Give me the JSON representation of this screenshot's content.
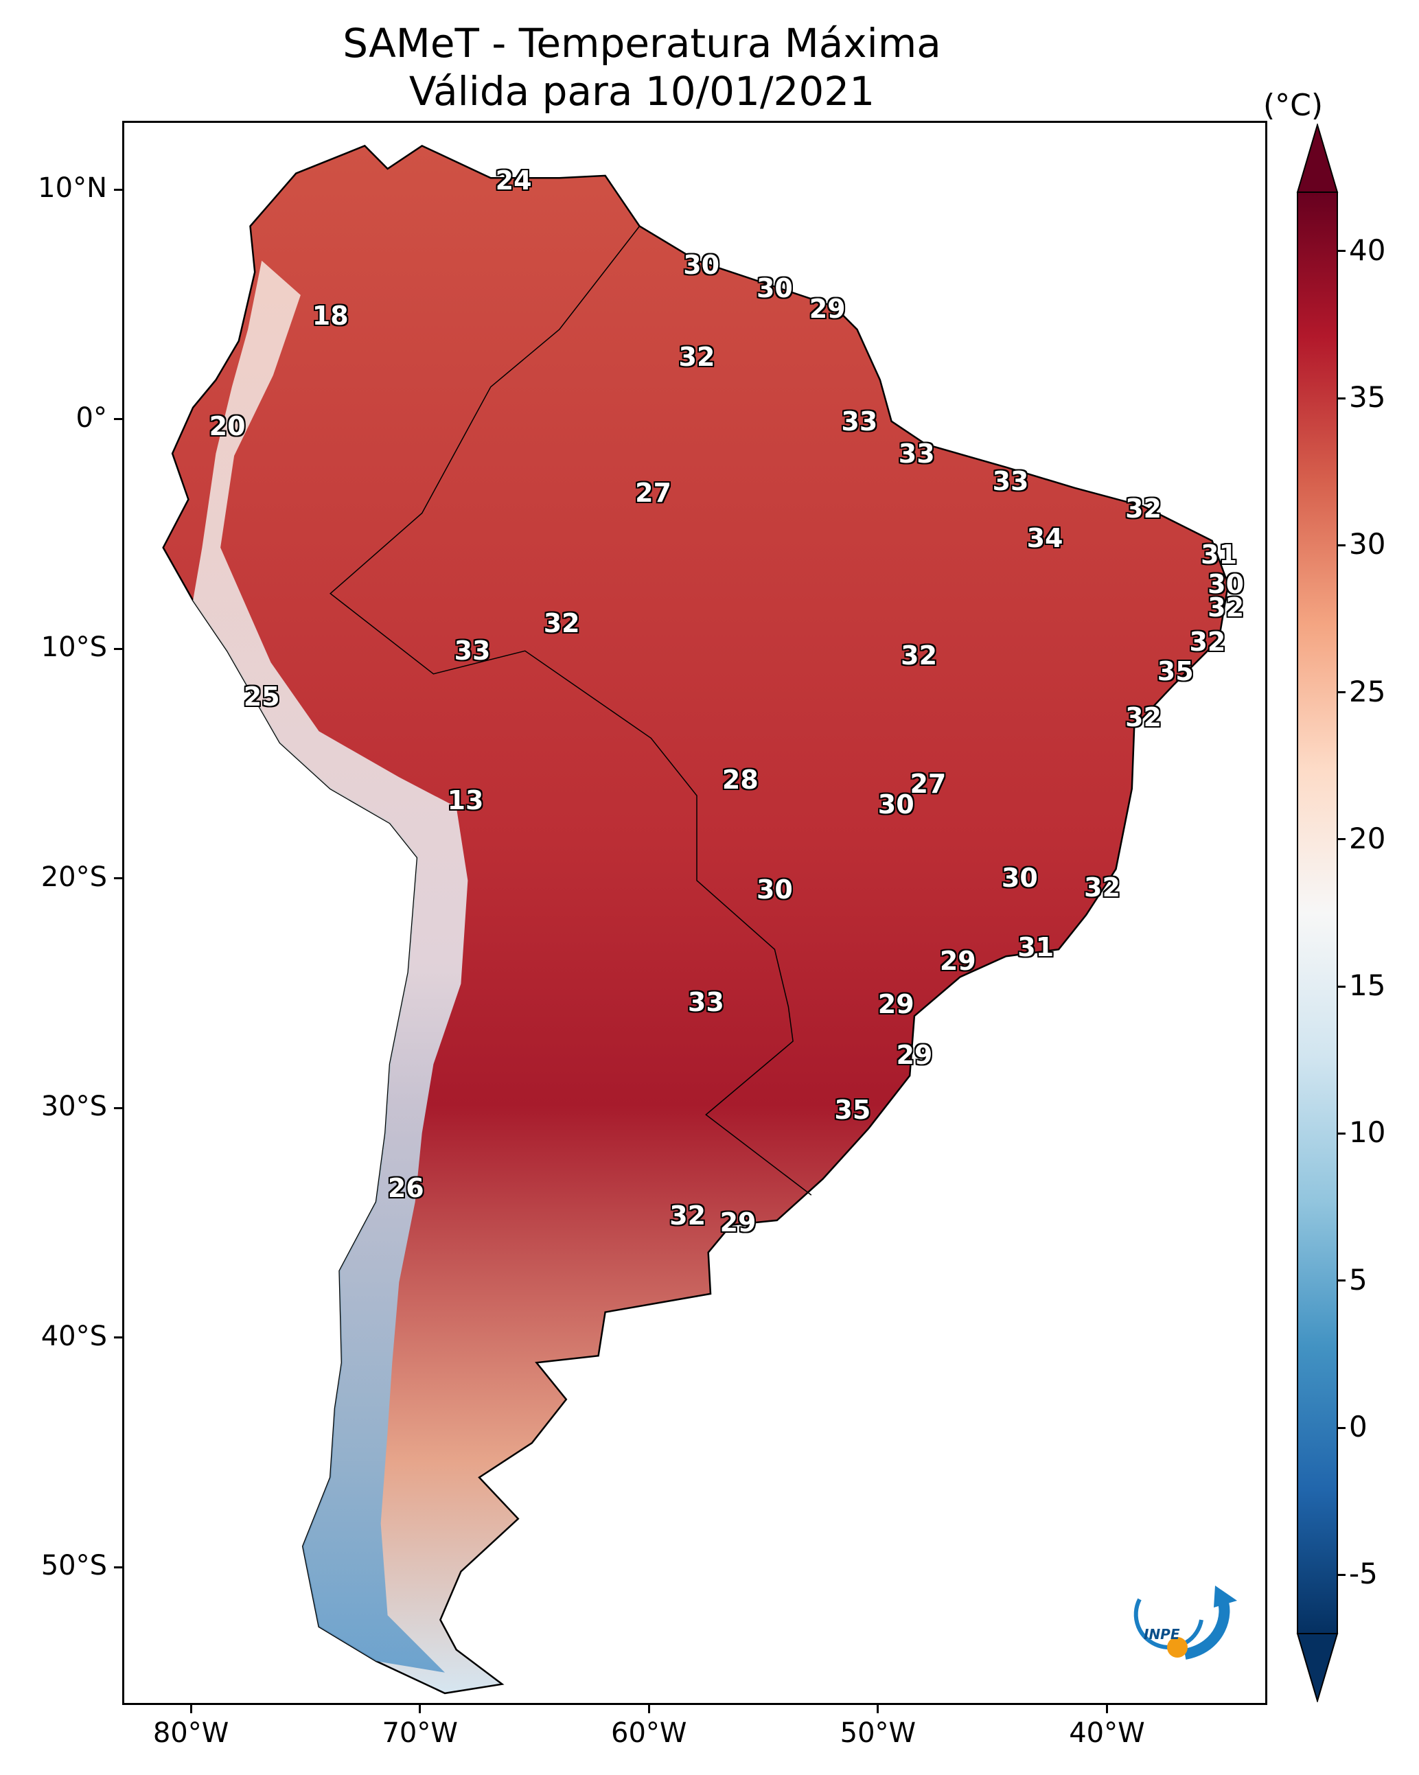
{
  "title": {
    "line1": "SAMeT - Temperatura Máxima",
    "line2": "Válida para 10/01/2021"
  },
  "map": {
    "variable": "Temperatura Máxima",
    "dataset": "SAMeT",
    "date": "10/01/2021",
    "lon_range": [
      -83,
      -33
    ],
    "lat_range": [
      -56,
      13
    ],
    "x_ticks": [
      {
        "lon": -80,
        "label": "80°W"
      },
      {
        "lon": -70,
        "label": "70°W"
      },
      {
        "lon": -60,
        "label": "60°W"
      },
      {
        "lon": -50,
        "label": "50°W"
      },
      {
        "lon": -40,
        "label": "40°W"
      }
    ],
    "y_ticks": [
      {
        "lat": 10,
        "label": "10°N"
      },
      {
        "lat": 0,
        "label": "0°"
      },
      {
        "lat": -10,
        "label": "10°S"
      },
      {
        "lat": -20,
        "label": "20°S"
      },
      {
        "lat": -30,
        "label": "30°S"
      },
      {
        "lat": -40,
        "label": "40°S"
      },
      {
        "lat": -50,
        "label": "50°S"
      }
    ],
    "station_values": [
      {
        "lon": -66.0,
        "lat": 10.5,
        "value": "24"
      },
      {
        "lon": -74.0,
        "lat": 4.6,
        "value": "18"
      },
      {
        "lon": -78.5,
        "lat": -0.2,
        "value": "20"
      },
      {
        "lon": -57.8,
        "lat": 6.8,
        "value": "30"
      },
      {
        "lon": -54.6,
        "lat": 5.8,
        "value": "30"
      },
      {
        "lon": -52.3,
        "lat": 4.9,
        "value": "29"
      },
      {
        "lon": -58.0,
        "lat": 2.8,
        "value": "32"
      },
      {
        "lon": -50.9,
        "lat": 0.0,
        "value": "33"
      },
      {
        "lon": -48.4,
        "lat": -1.4,
        "value": "33"
      },
      {
        "lon": -44.3,
        "lat": -2.6,
        "value": "33"
      },
      {
        "lon": -38.5,
        "lat": -3.8,
        "value": "32"
      },
      {
        "lon": -59.9,
        "lat": -3.1,
        "value": "27"
      },
      {
        "lon": -42.8,
        "lat": -5.1,
        "value": "34"
      },
      {
        "lon": -35.2,
        "lat": -5.8,
        "value": "31"
      },
      {
        "lon": -34.9,
        "lat": -7.1,
        "value": "30"
      },
      {
        "lon": -34.9,
        "lat": -8.1,
        "value": "32"
      },
      {
        "lon": -35.7,
        "lat": -9.6,
        "value": "32"
      },
      {
        "lon": -37.1,
        "lat": -10.9,
        "value": "35"
      },
      {
        "lon": -63.9,
        "lat": -8.8,
        "value": "32"
      },
      {
        "lon": -67.8,
        "lat": -10.0,
        "value": "33"
      },
      {
        "lon": -48.3,
        "lat": -10.2,
        "value": "32"
      },
      {
        "lon": -77.0,
        "lat": -12.0,
        "value": "25"
      },
      {
        "lon": -38.5,
        "lat": -12.9,
        "value": "32"
      },
      {
        "lon": -68.1,
        "lat": -16.5,
        "value": "13"
      },
      {
        "lon": -56.1,
        "lat": -15.6,
        "value": "28"
      },
      {
        "lon": -47.9,
        "lat": -15.8,
        "value": "27"
      },
      {
        "lon": -49.3,
        "lat": -16.7,
        "value": "30"
      },
      {
        "lon": -54.6,
        "lat": -20.4,
        "value": "30"
      },
      {
        "lon": -43.9,
        "lat": -19.9,
        "value": "30"
      },
      {
        "lon": -40.3,
        "lat": -20.3,
        "value": "32"
      },
      {
        "lon": -43.2,
        "lat": -22.9,
        "value": "31"
      },
      {
        "lon": -46.6,
        "lat": -23.5,
        "value": "29"
      },
      {
        "lon": -57.6,
        "lat": -25.3,
        "value": "33"
      },
      {
        "lon": -49.3,
        "lat": -25.4,
        "value": "29"
      },
      {
        "lon": -48.5,
        "lat": -27.6,
        "value": "29"
      },
      {
        "lon": -51.2,
        "lat": -30.0,
        "value": "35"
      },
      {
        "lon": -70.7,
        "lat": -33.4,
        "value": "26"
      },
      {
        "lon": -58.4,
        "lat": -34.6,
        "value": "32"
      },
      {
        "lon": -56.2,
        "lat": -34.9,
        "value": "29"
      }
    ]
  },
  "colorbar": {
    "unit": "(°C)",
    "min": -7,
    "max": 42,
    "ticks": [
      "40",
      "35",
      "30",
      "25",
      "20",
      "15",
      "10",
      "5",
      "0",
      "-5"
    ],
    "tick_values": [
      40,
      35,
      30,
      25,
      20,
      15,
      10,
      5,
      0,
      -5
    ],
    "colormap": [
      "#053061",
      "#2166ac",
      "#4393c3",
      "#92c5de",
      "#d1e5f0",
      "#f7f7f7",
      "#fddbc7",
      "#f4a582",
      "#d6604d",
      "#b2182b",
      "#67001f"
    ]
  },
  "logo": {
    "text": "INPE",
    "colors": {
      "blue": "#1a7fc4",
      "orange": "#f39c12"
    }
  }
}
